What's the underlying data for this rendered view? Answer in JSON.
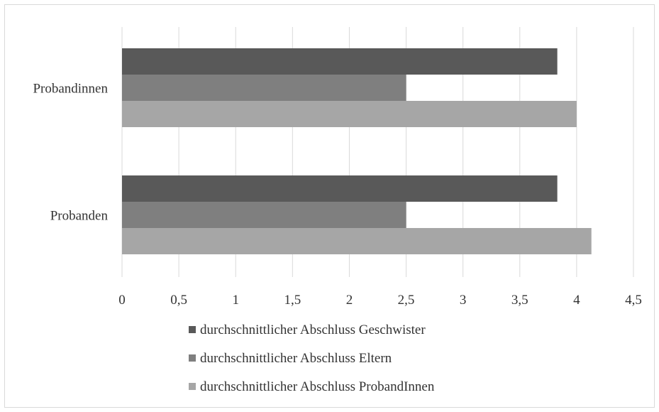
{
  "chart_data": {
    "type": "bar",
    "orientation": "horizontal",
    "categories": [
      "Probandinnen",
      "Probanden"
    ],
    "series": [
      {
        "name": "durchschnittlicher Abschluss Geschwister",
        "values": [
          3.83,
          3.83
        ],
        "color": "#595959"
      },
      {
        "name": "durchschnittlicher Abschluss Eltern",
        "values": [
          2.5,
          2.5
        ],
        "color": "#7f7f7f"
      },
      {
        "name": "durchschnittlicher Abschluss ProbandInnen",
        "values": [
          4.0,
          4.13
        ],
        "color": "#a6a6a6"
      }
    ],
    "xticks": [
      "0",
      "0,5",
      "1",
      "1,5",
      "2",
      "2,5",
      "3",
      "3,5",
      "4",
      "4,5"
    ],
    "xlim": [
      0,
      4.5
    ],
    "title": "",
    "xlabel": "",
    "ylabel": "",
    "grid": "vertical",
    "legend_position": "bottom"
  }
}
